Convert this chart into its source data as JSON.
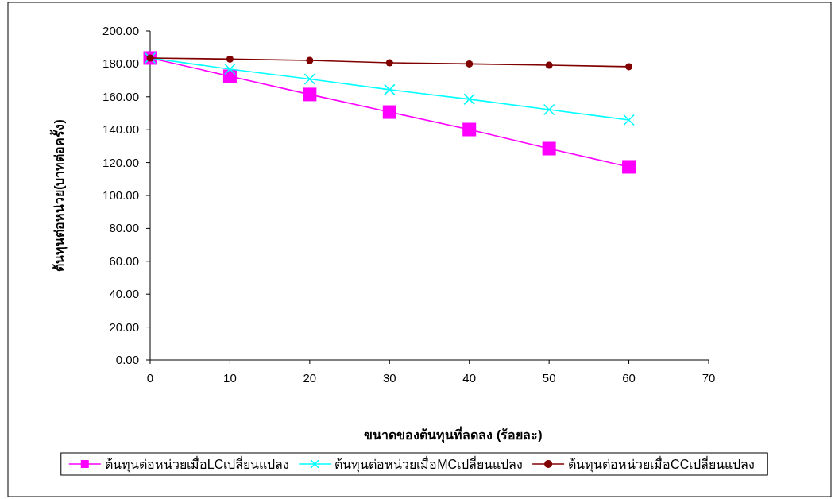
{
  "chart_data": {
    "type": "line",
    "xlabel": "ขนาดของต้นทุนที่ลดลง (ร้อยละ)",
    "ylabel": "ต้นทุนต่อหน่วย(บาทต่อครั้ง)",
    "x": [
      0,
      10,
      20,
      30,
      40,
      50,
      60
    ],
    "xlim": [
      0,
      70
    ],
    "xticks": [
      0,
      10,
      20,
      30,
      40,
      50,
      60,
      70
    ],
    "ylim": [
      0,
      200
    ],
    "yticks": [
      {
        "value": 0,
        "label": "0.00"
      },
      {
        "value": 20,
        "label": "20.00"
      },
      {
        "value": 40,
        "label": "40.00"
      },
      {
        "value": 60,
        "label": "60.00"
      },
      {
        "value": 80,
        "label": "80.00"
      },
      {
        "value": 100,
        "label": "100.00"
      },
      {
        "value": 120,
        "label": "120.00"
      },
      {
        "value": 140,
        "label": "140.00"
      },
      {
        "value": 160,
        "label": "160.00"
      },
      {
        "value": 180,
        "label": "180.00"
      },
      {
        "value": 200,
        "label": "200.00"
      }
    ],
    "legend": "bottom",
    "grid": false,
    "series": [
      {
        "name": "ต้นทุนต่อหน่วยเมื่อLCเปลี่ยนแปลง",
        "color": "#ff00ff",
        "marker": "square",
        "values": [
          183.6,
          172.5,
          161.4,
          150.7,
          140.1,
          128.5,
          117.4
        ]
      },
      {
        "name": "ต้นทุนต่อหน่วยเมื่อMCเปลี่ยนแปลง",
        "color": "#00ffff",
        "marker": "cross",
        "values": [
          183.6,
          176.8,
          170.8,
          164.3,
          158.5,
          152.2,
          145.9
        ]
      },
      {
        "name": "ต้นทุนต่อหน่วยเมื่อCCเปลี่ยนแปลง",
        "color": "#800000",
        "marker": "circle",
        "values": [
          183.6,
          182.9,
          182.1,
          180.7,
          180.0,
          179.2,
          178.3
        ]
      }
    ]
  }
}
